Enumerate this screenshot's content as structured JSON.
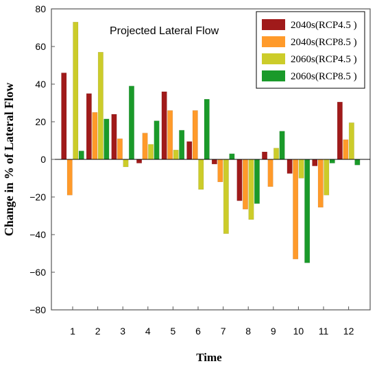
{
  "chart_data": {
    "type": "bar",
    "title": "Projected Lateral Flow",
    "xlabel": "Time",
    "ylabel": "Change in % of Lateral Flow",
    "ylim": [
      -80,
      80
    ],
    "yticks": [
      80,
      60,
      40,
      20,
      0,
      -20,
      -40,
      -60,
      -80
    ],
    "categories": [
      "1",
      "2",
      "3",
      "4",
      "5",
      "6",
      "7",
      "8",
      "9",
      "10",
      "11",
      "12"
    ],
    "legend_position": "top-right",
    "grid": false,
    "series": [
      {
        "name": "2040s(RCP4.5 )",
        "color": "#a01a1a",
        "values": [
          46,
          35,
          24,
          -2,
          36,
          9.5,
          -2.5,
          -22,
          4,
          -7.5,
          -3.5,
          30.5
        ]
      },
      {
        "name": "2040s(RCP8.5 )",
        "color": "#ff9a2a",
        "values": [
          -19,
          25,
          11,
          14,
          26,
          26,
          -12,
          -26.5,
          -14.5,
          -53,
          -25.5,
          10.5
        ]
      },
      {
        "name": "2060s(RCP4.5 )",
        "color": "#cccc2a",
        "values": [
          73,
          57,
          -4,
          8,
          5,
          -16,
          -39.5,
          -32,
          6,
          -10,
          -19,
          19.5
        ]
      },
      {
        "name": "2060s(RCP8.5 )",
        "color": "#1a9a2a",
        "values": [
          4.5,
          21.5,
          39,
          20.5,
          15.5,
          32,
          3,
          -23.5,
          15,
          -55,
          -2,
          -3
        ]
      }
    ]
  }
}
